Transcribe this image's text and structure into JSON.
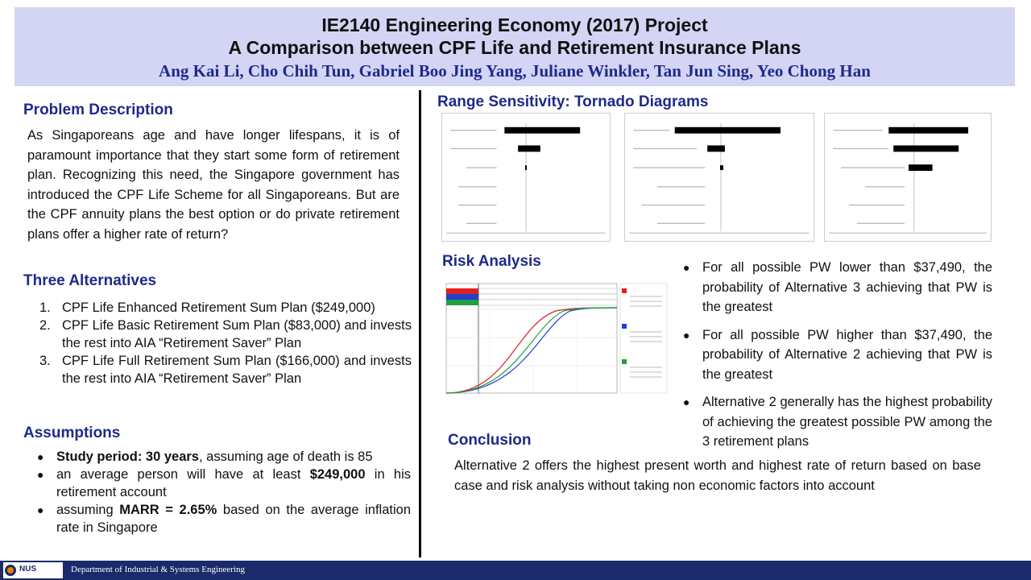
{
  "header": {
    "title_line1": "IE2140 Engineering Economy (2017) Project",
    "title_line2": "A Comparison between CPF Life and Retirement Insurance Plans",
    "authors": "Ang Kai Li, Cho Chih Tun, Gabriel Boo Jing Yang, Juliane Winkler, Tan Jun Sing, Yeo Chong Han"
  },
  "problem": {
    "title": "Problem Description",
    "text": "As Singaporeans age and have longer lifespans, it is of paramount importance that they start some form of retirement plan. Recognizing this need, the Singapore government has introduced the CPF Life Scheme for all Singaporeans. But are the CPF annuity plans the best option or do private retirement plans offer a higher rate of return?"
  },
  "alternatives": {
    "title": "Three Alternatives",
    "items": [
      {
        "num": "1.",
        "text": "CPF Life Enhanced Retirement Sum Plan ($249,000)"
      },
      {
        "num": "2.",
        "text": "CPF Life Basic Retirement Sum Plan ($83,000) and invests the rest into AIA “Retirement Saver” Plan"
      },
      {
        "num": "3.",
        "text": "CPF Life Full Retirement Sum Plan ($166,000) and invests the rest into AIA “Retirement Saver” Plan"
      }
    ]
  },
  "assumptions": {
    "title": "Assumptions",
    "item1_bold": "Study period: 30 years",
    "item1_rest": ", assuming age of death is 85",
    "item2_pre": "an average person will have at least ",
    "item2_bold": "$249,000",
    "item2_post": " in his retirement account",
    "item3_pre": "assuming ",
    "item3_bold": "MARR = 2.65%",
    "item3_post": " based on the average inflation rate in Singapore"
  },
  "tornado": {
    "title": "Range Sensitivity:  Tornado Diagrams"
  },
  "risk": {
    "title": "Risk Analysis",
    "bullets": [
      "For all possible PW lower than $37,490, the probability of Alternative 3 achieving that PW is the greatest",
      "For all possible PW higher than $37,490, the probability of Alternative 2 achieving that PW is the greatest",
      "Alternative 2 generally has the highest probability of achieving the greatest possible PW among the 3 retirement plans"
    ]
  },
  "conclusion": {
    "title": "Conclusion",
    "text": "Alternative 2 offers the highest present worth and highest rate of return based on base case and risk analysis without taking non economic factors into account"
  },
  "footer": {
    "department": "Department of Industrial & Systems Engineering",
    "logo_text": "NUS"
  },
  "colors": {
    "header_bg": "#d4d4f5",
    "title_blue": "#1e2a8a",
    "footer_bg": "#1a2a6a"
  }
}
